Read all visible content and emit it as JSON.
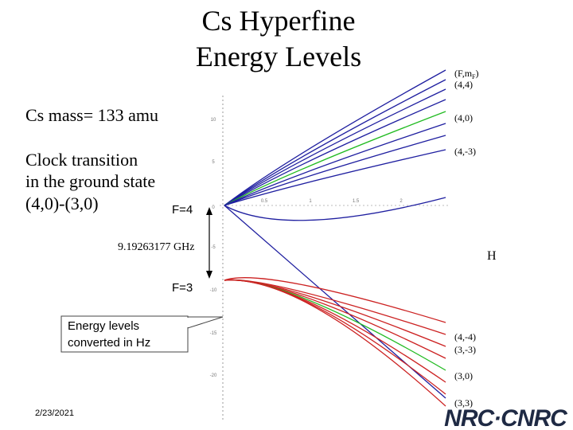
{
  "title": [
    "Cs Hyperfine",
    "Energy Levels"
  ],
  "mass": "Cs mass= 133 amu",
  "clock": [
    "Clock transition",
    "in the ground state",
    "(4,0)-(3,0)"
  ],
  "levels": {
    "upper": "F=4",
    "lower": "F=3"
  },
  "splitting": "9.19263177 GHz",
  "field_axis": "H",
  "state_header": {
    "text": "(F,m",
    "sub": "F",
    "end": ")"
  },
  "states_upper": [
    "(4,4)",
    "(4,0)",
    "(4,-3)"
  ],
  "states_lower": [
    "(4,-4)",
    "(3,-3)",
    "(3,0)",
    "(3,3)"
  ],
  "callout": [
    "Energy levels",
    "converted in Hz"
  ],
  "axis_labels": [
    "10",
    "5",
    "0",
    "-5",
    "-10",
    "-15",
    "-20"
  ],
  "field_labels": [
    "0.5",
    "1",
    "1.5",
    "2"
  ],
  "date": "2/23/2021",
  "logo": "NRC·CNRC"
}
